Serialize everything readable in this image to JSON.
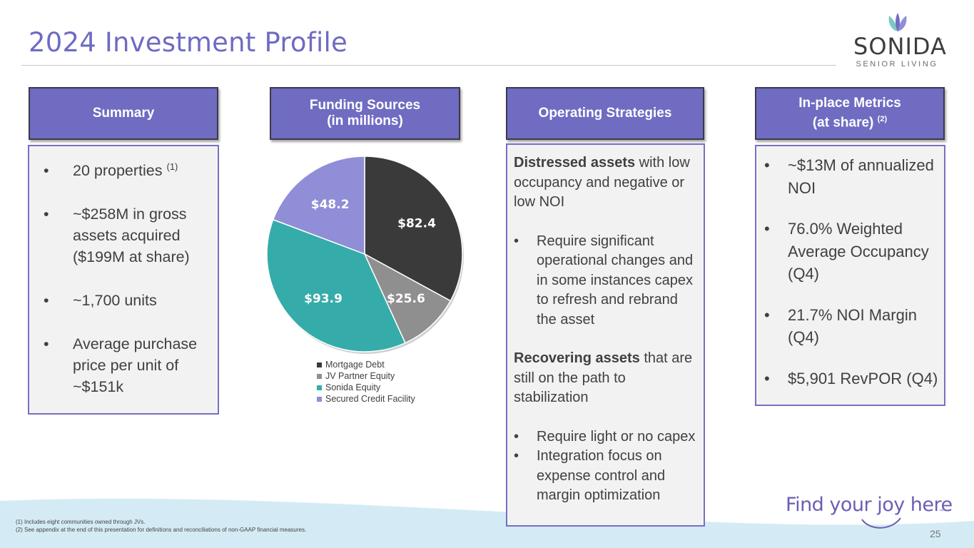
{
  "page": {
    "title": "2024 Investment Profile",
    "page_number": "25"
  },
  "logo": {
    "word": "SONIDA",
    "trademark": "™",
    "subtitle": "SENIOR LIVING"
  },
  "summary": {
    "header": "Summary",
    "items": [
      {
        "text": "20 properties",
        "footnote": "(1)"
      },
      {
        "text": "~$258M in gross assets acquired ($199M at share)"
      },
      {
        "text": "~1,700 units"
      },
      {
        "text": "Average purchase price per unit of ~$151k"
      }
    ]
  },
  "funding": {
    "header_line1": "Funding Sources",
    "header_line2": "(in millions)"
  },
  "strategies": {
    "header": "Operating Strategies",
    "distressed_bold": "Distressed assets",
    "distressed_rest": " with low occupancy and negative or low NOI",
    "distressed_bullets": [
      "Require significant operational changes  and in some instances capex to refresh and rebrand the asset"
    ],
    "recovering_bold": "Recovering assets",
    "recovering_rest": " that are still on the path to stabilization",
    "recovering_bullets": [
      "Require light or no capex",
      "Integration focus on expense control and margin optimization"
    ]
  },
  "metrics": {
    "header_line1": "In-place Metrics",
    "header_line2": "(at share)",
    "header_footnote": "(2)",
    "items": [
      "~$13M of annualized NOI",
      "76.0% Weighted Average Occupancy (Q4)",
      "21.7% NOI Margin (Q4)",
      "$5,901 RevPOR (Q4)"
    ]
  },
  "chart_data": {
    "type": "pie",
    "slices": [
      {
        "label": "Mortgage Debt",
        "value": 82.4,
        "display": "$82.4",
        "color": "#3a3a3a"
      },
      {
        "label": "JV Partner Equity",
        "value": 25.6,
        "display": "$25.6",
        "color": "#8f8f8f"
      },
      {
        "label": "Sonida Equity",
        "value": 93.9,
        "display": "$93.9",
        "color": "#35aca9"
      },
      {
        "label": "Secured Credit Facility",
        "value": 48.2,
        "display": "$48.2",
        "color": "#8f8ed6"
      }
    ],
    "legend_position": "bottom"
  },
  "tagline": {
    "text": "Find your joy here",
    "trademark": "™"
  },
  "footnotes": [
    "(1) Includes eight communities owned through JVs.",
    "(2) See appendix at the end of this presentation for definitions and reconciliations of non-GAAP financial measures."
  ],
  "colors": {
    "brand_purple": "#6f6cc2",
    "title_purple": "#6e6bc3",
    "box_border": "#7570c2",
    "bottom_wave": "#d4ebf5"
  }
}
